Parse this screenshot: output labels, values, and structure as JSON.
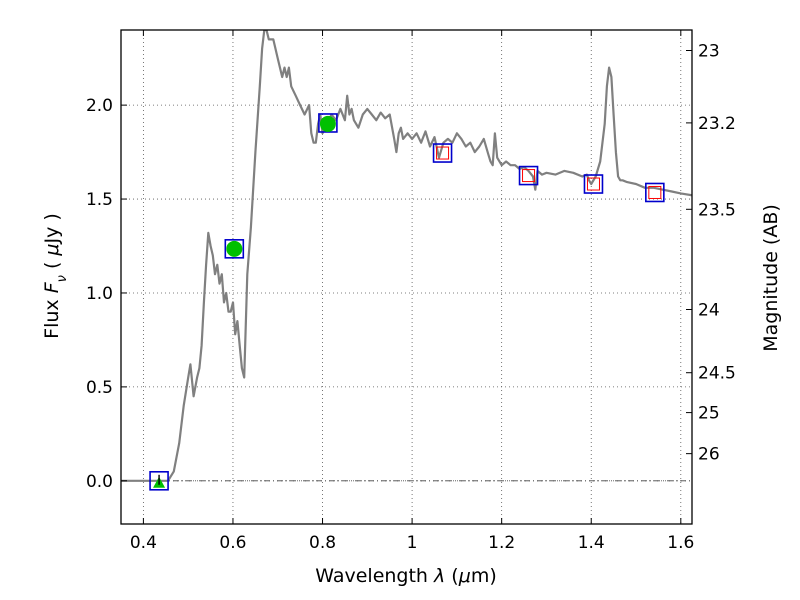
{
  "chart_data": {
    "type": "line",
    "xlabel": "Wavelength  λ (μm)",
    "xlabel_parts": {
      "prefix": "Wavelength  ",
      "symbol": "λ",
      "open": " (",
      "mu": "μ",
      "unit": "m)"
    },
    "ylabel": "Flux  Fν  ( μJy )",
    "ylabel_parts": {
      "prefix": "Flux  ",
      "symbol": "F",
      "sub": "ν",
      "open": "  ( ",
      "mu": "μ",
      "unit": "Jy )"
    },
    "y2label": "Magnitude (AB)",
    "xlim": [
      0.35,
      1.625
    ],
    "ylim": [
      -0.23,
      2.4
    ],
    "x_ticks": [
      0.4,
      0.6,
      0.8,
      1.0,
      1.2,
      1.4,
      1.6
    ],
    "x_tick_labels": [
      "0.4",
      "0.6",
      "0.8",
      "1",
      "1.2",
      "1.4",
      "1.6"
    ],
    "y_ticks": [
      0.0,
      0.5,
      1.0,
      1.5,
      2.0
    ],
    "y_tick_labels": [
      "0.0",
      "0.5",
      "1.0",
      "1.5",
      "2.0"
    ],
    "y2_tick_labels": [
      "23",
      "23.2",
      "23.5",
      "24",
      "24.5",
      "25",
      "26"
    ],
    "y2_tick_magnitudes": [
      23.0,
      23.2,
      23.5,
      24.0,
      24.5,
      25.0,
      26.0
    ],
    "grid": true,
    "zero_line": true,
    "colors": {
      "template": "#808080",
      "observed": "#00c000",
      "model_box": "#0000cc",
      "model_inner": "#ff0000",
      "grid": "#555555"
    },
    "series": [
      {
        "style": "template-line",
        "x": [
          0.35,
          0.43,
          0.455,
          0.468,
          0.48,
          0.49,
          0.5,
          0.505,
          0.512,
          0.52,
          0.525,
          0.53,
          0.535,
          0.54,
          0.545,
          0.55,
          0.555,
          0.56,
          0.565,
          0.57,
          0.575,
          0.58,
          0.585,
          0.59,
          0.595,
          0.6,
          0.605,
          0.61,
          0.615,
          0.62,
          0.625,
          0.632,
          0.64,
          0.65,
          0.66,
          0.665,
          0.67,
          0.675,
          0.68,
          0.69,
          0.7,
          0.71,
          0.715,
          0.72,
          0.725,
          0.73,
          0.74,
          0.75,
          0.76,
          0.77,
          0.775,
          0.78,
          0.785,
          0.79,
          0.795,
          0.8,
          0.81,
          0.82,
          0.83,
          0.84,
          0.85,
          0.855,
          0.86,
          0.865,
          0.87,
          0.88,
          0.89,
          0.9,
          0.91,
          0.92,
          0.93,
          0.94,
          0.95,
          0.96,
          0.965,
          0.97,
          0.975,
          0.98,
          0.99,
          1.0,
          1.01,
          1.02,
          1.03,
          1.04,
          1.05,
          1.06,
          1.07,
          1.08,
          1.09,
          1.1,
          1.11,
          1.12,
          1.13,
          1.14,
          1.15,
          1.16,
          1.17,
          1.175,
          1.18,
          1.185,
          1.19,
          1.2,
          1.21,
          1.22,
          1.23,
          1.24,
          1.25,
          1.26,
          1.27,
          1.275,
          1.28,
          1.29,
          1.3,
          1.32,
          1.34,
          1.36,
          1.38,
          1.39,
          1.395,
          1.4,
          1.41,
          1.42,
          1.43,
          1.435,
          1.44,
          1.445,
          1.45,
          1.455,
          1.46,
          1.465,
          1.47,
          1.48,
          1.5,
          1.52,
          1.54,
          1.56,
          1.58,
          1.6,
          1.625
        ],
        "y": [
          0.0,
          0.0,
          0.0,
          0.05,
          0.2,
          0.4,
          0.55,
          0.62,
          0.45,
          0.55,
          0.6,
          0.72,
          0.95,
          1.15,
          1.32,
          1.25,
          1.2,
          1.1,
          1.15,
          1.05,
          1.1,
          0.95,
          1.0,
          0.9,
          0.9,
          0.95,
          0.78,
          0.85,
          0.72,
          0.6,
          0.55,
          1.1,
          1.35,
          1.75,
          2.1,
          2.3,
          2.4,
          2.4,
          2.35,
          2.35,
          2.25,
          2.15,
          2.2,
          2.15,
          2.2,
          2.1,
          2.05,
          2.0,
          1.95,
          2.0,
          1.85,
          1.8,
          1.8,
          1.9,
          1.95,
          1.85,
          1.9,
          1.95,
          1.92,
          1.98,
          1.92,
          2.05,
          1.95,
          1.98,
          1.92,
          1.88,
          1.95,
          1.98,
          1.95,
          1.92,
          1.96,
          1.93,
          1.95,
          1.82,
          1.75,
          1.85,
          1.88,
          1.82,
          1.85,
          1.82,
          1.85,
          1.8,
          1.86,
          1.78,
          1.83,
          1.72,
          1.8,
          1.82,
          1.8,
          1.85,
          1.82,
          1.78,
          1.8,
          1.75,
          1.78,
          1.82,
          1.74,
          1.7,
          1.68,
          1.85,
          1.72,
          1.68,
          1.7,
          1.68,
          1.68,
          1.66,
          1.67,
          1.65,
          1.62,
          1.55,
          1.65,
          1.63,
          1.64,
          1.63,
          1.65,
          1.64,
          1.62,
          1.63,
          1.6,
          1.58,
          1.62,
          1.7,
          1.9,
          2.1,
          2.2,
          2.15,
          1.95,
          1.75,
          1.62,
          1.6,
          1.6,
          1.59,
          1.58,
          1.56,
          1.56,
          1.55,
          1.54,
          1.53,
          1.52
        ]
      },
      {
        "style": "model-squares",
        "x": [
          0.435,
          0.603,
          0.812,
          1.068,
          1.26,
          1.405,
          1.542
        ],
        "y": [
          0.0,
          1.235,
          1.905,
          1.745,
          1.625,
          1.58,
          1.535
        ],
        "red_inner": [
          false,
          false,
          false,
          true,
          true,
          true,
          true
        ]
      },
      {
        "style": "observed-points",
        "x": [
          0.603,
          0.812
        ],
        "y": [
          1.235,
          1.9
        ],
        "yerr": [
          0.04,
          0.04
        ]
      },
      {
        "style": "upper-limit",
        "x": [
          0.435
        ],
        "y": [
          0.0
        ],
        "yerr": [
          0.02
        ]
      }
    ]
  }
}
